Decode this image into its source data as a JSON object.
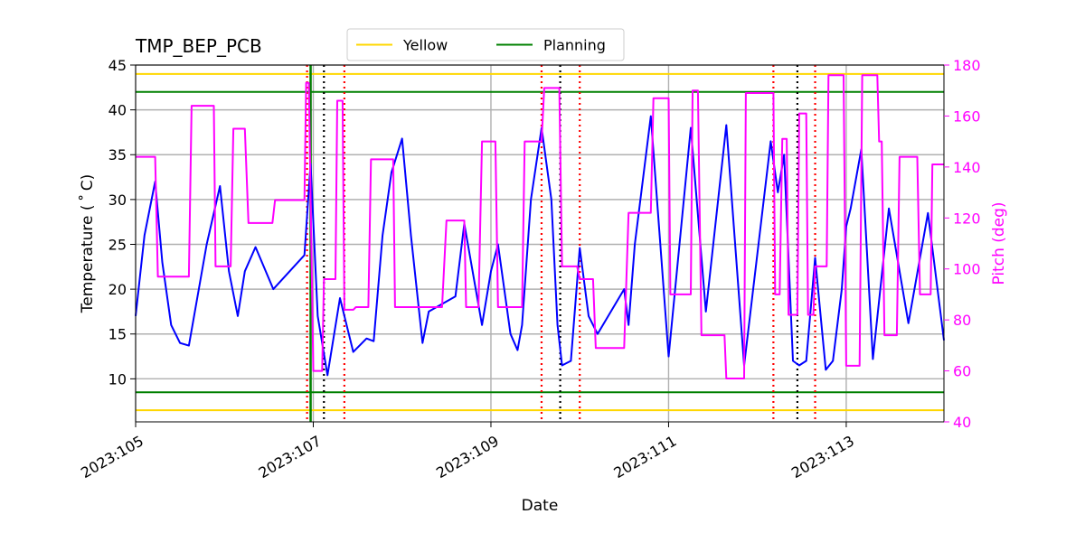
{
  "chart_data": {
    "type": "line",
    "title": "TMP_BEP_PCB",
    "xlabel": "Date",
    "ylabel": "Temperature ($^\\circ$C)",
    "ylabel_display": "Temperature ( ˚ C)",
    "y2label": "Pitch (deg)",
    "xlim": [
      105.0,
      114.1
    ],
    "ylim": [
      5.2,
      45
    ],
    "y2lim": [
      40,
      180
    ],
    "grid": true,
    "x_ticks": [
      {
        "value": 105,
        "label": "2023:105"
      },
      {
        "value": 107,
        "label": "2023:107"
      },
      {
        "value": 109,
        "label": "2023:109"
      },
      {
        "value": 111,
        "label": "2023:111"
      },
      {
        "value": 113,
        "label": "2023:113"
      }
    ],
    "y_ticks": [
      10,
      15,
      20,
      25,
      30,
      35,
      40,
      45
    ],
    "y2_ticks": [
      40,
      60,
      80,
      100,
      120,
      140,
      160,
      180
    ],
    "limit_lines": [
      {
        "name": "Yellow",
        "color": "#ffd700",
        "values": [
          44.0,
          6.5
        ]
      },
      {
        "name": "Planning",
        "color": "#008000",
        "values": [
          42.0,
          8.5
        ]
      }
    ],
    "legend": {
      "placement": "top-center",
      "entries": [
        {
          "name": "Yellow",
          "color": "#ffd700"
        },
        {
          "name": "Planning",
          "color": "#008000"
        }
      ]
    },
    "markers": {
      "green_solid": [
        106.97
      ],
      "red_dotted": [
        106.93,
        107.35,
        109.57,
        110.0,
        112.18,
        112.65
      ],
      "black_dotted": [
        107.12,
        109.78,
        112.45
      ]
    },
    "series": [
      {
        "name": "Temperature",
        "axis": "left",
        "color": "#0000ff",
        "x": [
          105.0,
          105.1,
          105.22,
          105.3,
          105.4,
          105.5,
          105.6,
          105.8,
          105.95,
          106.05,
          106.15,
          106.23,
          106.35,
          106.55,
          106.9,
          106.97,
          107.05,
          107.16,
          107.3,
          107.45,
          107.6,
          107.68,
          107.78,
          107.88,
          108.0,
          108.1,
          108.23,
          108.3,
          108.6,
          108.7,
          108.9,
          109.0,
          109.08,
          109.22,
          109.3,
          109.35,
          109.45,
          109.57,
          109.68,
          109.75,
          109.8,
          109.9,
          110.0,
          110.1,
          110.2,
          110.5,
          110.55,
          110.62,
          110.8,
          111.0,
          111.25,
          111.42,
          111.65,
          111.85,
          112.15,
          112.23,
          112.3,
          112.4,
          112.47,
          112.55,
          112.65,
          112.77,
          112.85,
          112.95,
          113.0,
          113.05,
          113.17,
          113.3,
          113.48,
          113.7,
          113.92,
          114.1
        ],
        "y": [
          17,
          26,
          32,
          23,
          16,
          14,
          13.7,
          25,
          31.5,
          22,
          17,
          22,
          24.7,
          20,
          23.8,
          34,
          17,
          10.4,
          19,
          13,
          14.5,
          14.2,
          26,
          33,
          36.8,
          26,
          14,
          17.5,
          19.2,
          27.3,
          16,
          22,
          25,
          15,
          13.2,
          16,
          30,
          38,
          30,
          16,
          11.5,
          12,
          24.6,
          17,
          15,
          20,
          16,
          25,
          39.3,
          12.5,
          38,
          17.5,
          38.3,
          11.5,
          36.5,
          30.8,
          35,
          12,
          11.5,
          12,
          23.5,
          11,
          12,
          20,
          27,
          29,
          35.6,
          12.2,
          29,
          16.2,
          28.5,
          14.3
        ]
      },
      {
        "name": "Pitch",
        "axis": "right",
        "color": "#ff00ff",
        "x": [
          105.0,
          105.22,
          105.25,
          105.6,
          105.63,
          105.88,
          105.9,
          106.07,
          106.1,
          106.23,
          106.27,
          106.54,
          106.57,
          106.9,
          106.92,
          106.95,
          107.0,
          107.04,
          107.1,
          107.12,
          107.25,
          107.27,
          107.33,
          107.35,
          107.4,
          107.45,
          107.48,
          107.62,
          107.65,
          107.9,
          107.92,
          108.13,
          108.17,
          108.45,
          108.5,
          108.7,
          108.72,
          108.86,
          108.9,
          109.05,
          109.08,
          109.35,
          109.38,
          109.57,
          109.6,
          109.77,
          109.8,
          109.97,
          110.0,
          110.15,
          110.18,
          110.5,
          110.55,
          110.8,
          110.83,
          111.0,
          111.02,
          111.25,
          111.27,
          111.33,
          111.37,
          111.63,
          111.65,
          111.85,
          111.87,
          112.18,
          112.2,
          112.25,
          112.28,
          112.33,
          112.35,
          112.45,
          112.47,
          112.55,
          112.57,
          112.63,
          112.65,
          112.78,
          112.8,
          112.97,
          113.0,
          113.15,
          113.18,
          113.35,
          113.37,
          113.4,
          113.43,
          113.57,
          113.6,
          113.8,
          113.83,
          113.95,
          113.97,
          114.1
        ],
        "y": [
          144,
          144,
          97,
          97,
          164,
          164,
          101,
          101,
          155,
          155,
          118,
          118,
          127,
          127,
          173,
          173,
          60,
          60,
          60,
          96,
          96,
          166,
          166,
          84,
          84,
          84,
          85,
          85,
          143,
          143,
          85,
          85,
          85,
          85,
          119,
          119,
          85,
          85,
          150,
          150,
          85,
          85,
          150,
          150,
          171,
          171,
          101,
          101,
          96,
          96,
          69,
          69,
          122,
          122,
          167,
          167,
          90,
          90,
          170,
          170,
          74,
          74,
          57,
          57,
          169,
          169,
          90,
          90,
          151,
          151,
          82,
          82,
          161,
          161,
          82,
          82,
          101,
          101,
          176,
          176,
          62,
          62,
          176,
          176,
          150,
          150,
          74,
          74,
          144,
          144,
          90,
          90,
          141,
          141
        ]
      }
    ]
  }
}
